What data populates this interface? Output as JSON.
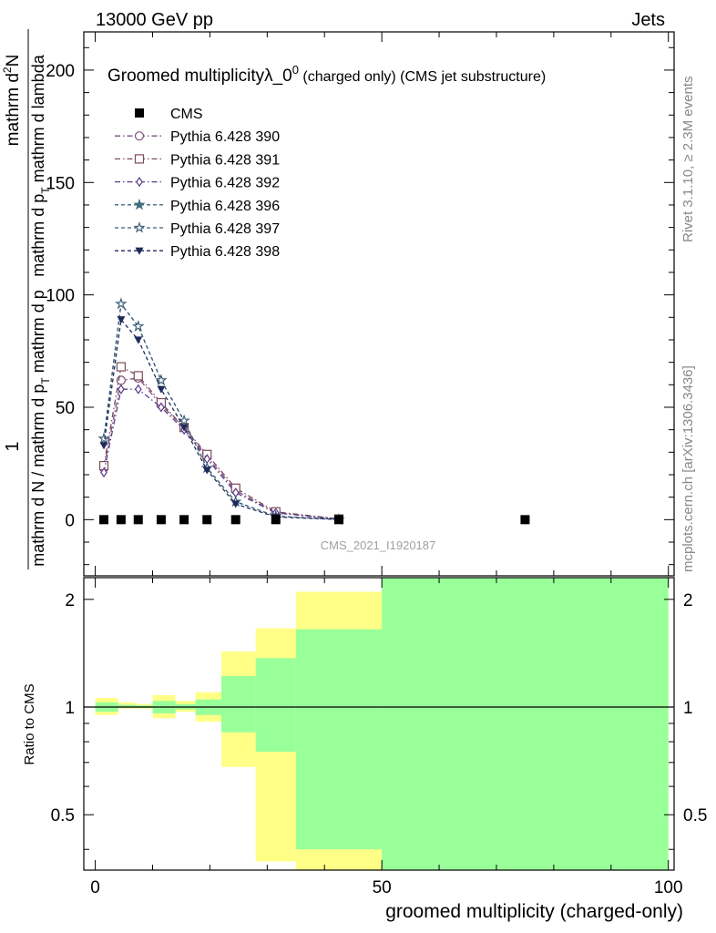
{
  "header": {
    "left": "13000 GeV pp",
    "right": "Jets"
  },
  "side_labels": {
    "rivet": "Rivet 3.1.10, ≥ 2.3M events",
    "mcplots": "mcplots.cern.ch [arXiv:1306.3436]"
  },
  "chart_data": {
    "type": "line",
    "title_main": "Groomed multiplicityλ_0",
    "title_sup": "0",
    "title_suffix": " (charged only) (CMS jet substructure)",
    "watermark": "CMS_2021_I1920187",
    "ylabel_top": {
      "numerator": "mathrm d",
      "numerator_sup": "2",
      "numerator_end": "N",
      "denominator": "mathrm d p",
      "denominator_sub": "T",
      "denominator_end": " mathrm d lambda"
    },
    "ylabel_bottom": {
      "one": "1",
      "text": "mathrm d N / mathrm d p",
      "sub": "T",
      "end": " mathrm d p"
    },
    "xlabel": "groomed multiplicity (charged-only)",
    "ratio_ylabel": "Ratio to CMS",
    "xlim": [
      -2,
      101
    ],
    "ylim": [
      -25,
      217
    ],
    "ratio_ylim": [
      0.35,
      2.3
    ],
    "x_ticks": [
      "0",
      "50",
      "100"
    ],
    "y_ticks": [
      "0",
      "50",
      "100",
      "150",
      "200"
    ],
    "ratio_ticks": [
      "0.5",
      "1",
      "2"
    ],
    "legend": [
      "CMS",
      "Pythia 6.428 390",
      "Pythia 6.428 391",
      "Pythia 6.428 392",
      "Pythia 6.428 396",
      "Pythia 6.428 397",
      "Pythia 6.428 398"
    ],
    "x": [
      1.5,
      4.5,
      7.5,
      11.5,
      15.5,
      19.5,
      24.5,
      31.5,
      42.5
    ],
    "cms": {
      "name": "CMS",
      "x": [
        1.5,
        4.5,
        7.5,
        11.5,
        15.5,
        19.5,
        24.5,
        31.5,
        42.5,
        75
      ],
      "values": [
        0,
        0,
        0,
        0,
        0,
        0,
        0,
        0,
        0,
        0
      ]
    },
    "series": [
      {
        "name": "Pythia 6.428 390",
        "color": "#7a4f7c",
        "marker": "circle-open",
        "dash": "6,3,1.5,3",
        "values": [
          23,
          62,
          63,
          51,
          41,
          28,
          13,
          3,
          0.3
        ]
      },
      {
        "name": "Pythia 6.428 391",
        "color": "#7d4a5c",
        "marker": "square-open",
        "dash": "6,3,1.5,3",
        "values": [
          24,
          68,
          64,
          52,
          41,
          29,
          14,
          3.5,
          0.3
        ]
      },
      {
        "name": "Pythia 6.428 392",
        "color": "#5d3b8a",
        "marker": "diamond-open",
        "dash": "6,3,1.5,3",
        "values": [
          21,
          58,
          58,
          50,
          40,
          27,
          12,
          3,
          0.3
        ]
      },
      {
        "name": "Pythia 6.428 396",
        "color": "#3f6a80",
        "marker": "star-filled",
        "dash": "4,3",
        "values": [
          36,
          96,
          86,
          62,
          44,
          23,
          8,
          1.5,
          0.1
        ]
      },
      {
        "name": "Pythia 6.428 397",
        "color": "#3e5e78",
        "marker": "star-open",
        "dash": "4,3",
        "values": [
          36,
          96,
          86,
          62,
          44,
          23,
          8,
          1.5,
          0.1
        ]
      },
      {
        "name": "Pythia 6.428 398",
        "color": "#1f2a5a",
        "marker": "triangle-down-filled",
        "dash": "4,3",
        "values": [
          33,
          89,
          80,
          58,
          41,
          22,
          7,
          1.2,
          0.1
        ]
      }
    ],
    "ratio_bands": {
      "edges": [
        0,
        4,
        7,
        10,
        14,
        17.5,
        22,
        28,
        35,
        50,
        100
      ],
      "yellow": [
        [
          0.95,
          1.06
        ],
        [
          0.99,
          1.03
        ],
        [
          0.99,
          1.02
        ],
        [
          0.93,
          1.08
        ],
        [
          0.97,
          1.04
        ],
        [
          0.91,
          1.1
        ],
        [
          0.68,
          1.43
        ],
        [
          0.37,
          1.66
        ],
        [
          0.35,
          2.1
        ],
        [
          0.35,
          2.3
        ]
      ],
      "green": [
        [
          0.97,
          1.03
        ],
        [
          0.995,
          1.015
        ],
        [
          0.995,
          1.01
        ],
        [
          0.96,
          1.04
        ],
        [
          0.985,
          1.02
        ],
        [
          0.95,
          1.05
        ],
        [
          0.85,
          1.22
        ],
        [
          0.75,
          1.37
        ],
        [
          0.4,
          1.65
        ],
        [
          0.35,
          2.3
        ]
      ]
    }
  }
}
